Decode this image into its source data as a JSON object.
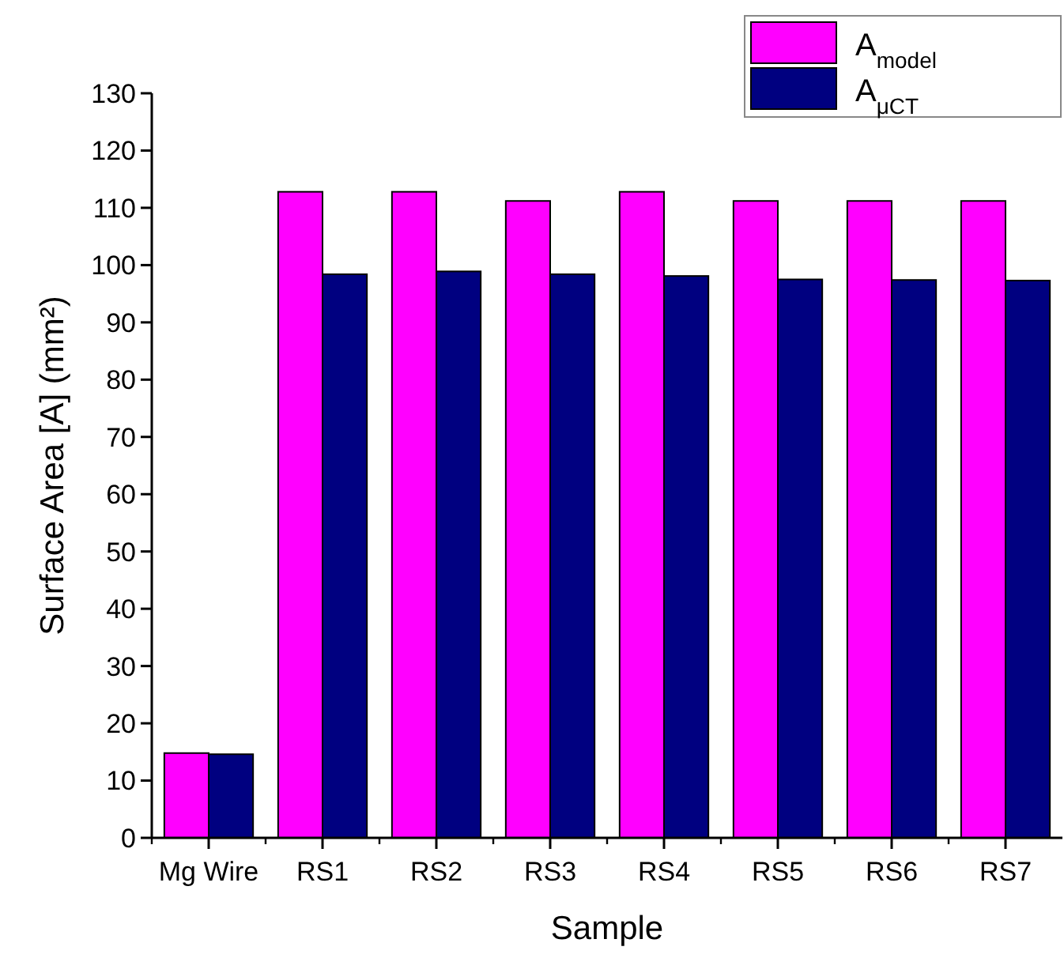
{
  "chart_data": {
    "type": "bar",
    "xlabel": "Sample",
    "ylabel": "Surface Area [A] (mm²)",
    "categories": [
      "Mg Wire",
      "RS1",
      "RS2",
      "RS3",
      "RS4",
      "RS5",
      "RS6",
      "RS7"
    ],
    "series": [
      {
        "name": "A$_{model}$",
        "color": "#ff00ff",
        "values": [
          14.8,
          112.8,
          112.8,
          111.2,
          112.8,
          111.2,
          111.2,
          111.2
        ]
      },
      {
        "name": "A$_{μCT}$",
        "color": "#000080",
        "values": [
          14.6,
          98.4,
          98.9,
          98.4,
          98.1,
          97.5,
          97.4,
          97.3
        ]
      }
    ],
    "ylim": [
      0,
      130
    ],
    "yticks": [
      0,
      10,
      20,
      30,
      40,
      50,
      60,
      70,
      80,
      90,
      100,
      110,
      120,
      130
    ],
    "grid": false,
    "legend": "top right"
  }
}
